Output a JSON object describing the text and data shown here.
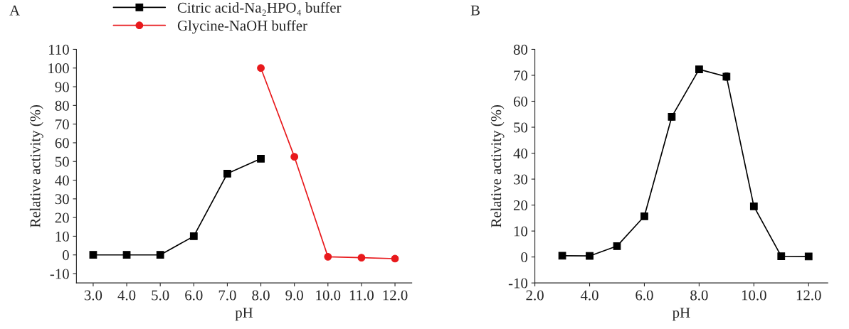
{
  "chart_data": [
    {
      "type": "line",
      "annotations": [
        "A"
      ],
      "xlabel": "pH",
      "ylabel": "Relative activity (%)",
      "xlim": [
        2.5,
        12.5
      ],
      "xticks": [
        {
          "value": 3,
          "label": "3.0"
        },
        {
          "value": 4,
          "label": "4.0"
        },
        {
          "value": 5,
          "label": "5.0"
        },
        {
          "value": 6,
          "label": "6.0"
        },
        {
          "value": 7,
          "label": "7.0"
        },
        {
          "value": 8,
          "label": "8.0"
        },
        {
          "value": 9,
          "label": "9.0"
        },
        {
          "value": 10,
          "label": "10.0"
        },
        {
          "value": 11,
          "label": "11.0"
        },
        {
          "value": 12,
          "label": "12.0"
        }
      ],
      "ylim": [
        -15,
        110
      ],
      "yticks": [
        -10,
        0,
        10,
        20,
        30,
        40,
        50,
        60,
        70,
        80,
        90,
        100,
        110
      ],
      "grid": false,
      "legend": "top",
      "series": [
        {
          "name": "Citric acid-Na₂HPO₄ buffer",
          "color": "#000000",
          "marker": "square",
          "x": [
            3,
            4,
            5,
            6,
            7,
            8
          ],
          "values": [
            0,
            0,
            0,
            10,
            43.5,
            51.5
          ]
        },
        {
          "name": "Glycine-NaOH buffer",
          "color": "#e8191c",
          "marker": "circle",
          "x": [
            8,
            9,
            10,
            11,
            12
          ],
          "values": [
            100,
            52.5,
            -1,
            -1.5,
            -2
          ]
        }
      ]
    },
    {
      "type": "line",
      "annotations": [
        "B"
      ],
      "xlabel": "pH",
      "ylabel": "Relative activity (%)",
      "xlim": [
        2,
        12.7
      ],
      "xticks": [
        {
          "value": 2,
          "label": "2.0"
        },
        {
          "value": 4,
          "label": "4.0"
        },
        {
          "value": 6,
          "label": "6.0"
        },
        {
          "value": 8,
          "label": "8.0"
        },
        {
          "value": 10,
          "label": "10.0"
        },
        {
          "value": 12,
          "label": "12.0"
        }
      ],
      "ylim": [
        -10,
        80
      ],
      "yticks": [
        -10,
        0,
        10,
        20,
        30,
        40,
        50,
        60,
        70,
        80
      ],
      "grid": false,
      "legend": false,
      "series": [
        {
          "color": "#000000",
          "marker": "square",
          "x": [
            3,
            4,
            5,
            6,
            7,
            8,
            9,
            10,
            11,
            12
          ],
          "values": [
            0.5,
            0.4,
            4.2,
            15.7,
            54,
            72.3,
            69.5,
            19.5,
            0.3,
            0.2
          ],
          "errors": [
            0.5,
            0.5,
            0.5,
            0.6,
            1.2,
            1,
            1.4,
            0.5,
            0.3,
            0.3
          ]
        }
      ]
    }
  ]
}
